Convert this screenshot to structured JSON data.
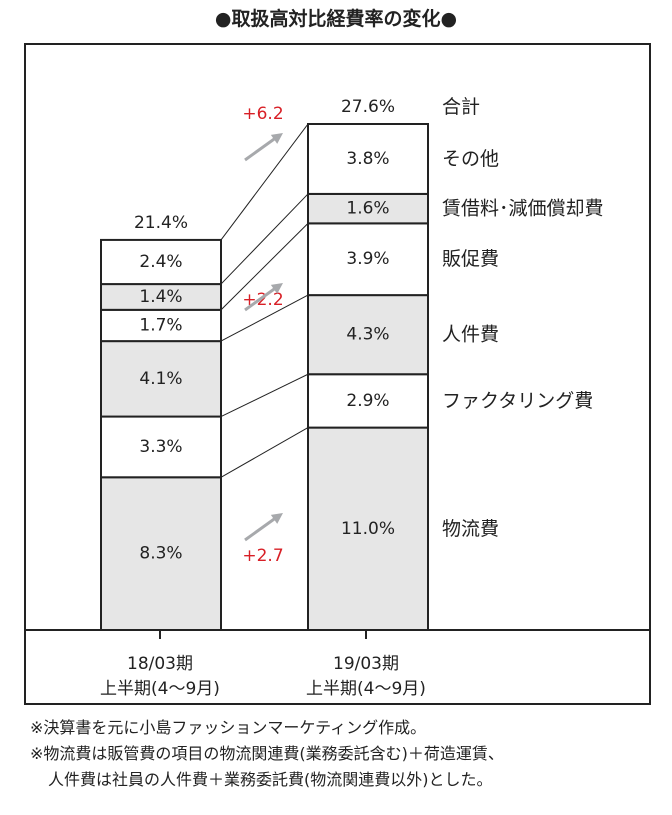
{
  "chart_data": {
    "type": "stacked-bar",
    "title": "●取扱高対比経費率の変化●",
    "unit": "%",
    "categories": [
      {
        "line1": "18/03期",
        "line2": "上半期(4〜9月)"
      },
      {
        "line1": "19/03期",
        "line2": "上半期(4〜9月)"
      }
    ],
    "series": [
      {
        "name": "物流費",
        "values": [
          8.3,
          11.0
        ],
        "labels": [
          "8.3%",
          "11.0%"
        ],
        "shaded": true
      },
      {
        "name": "ファクタリング費",
        "values": [
          3.3,
          2.9
        ],
        "labels": [
          "3.3%",
          "2.9%"
        ],
        "shaded": false
      },
      {
        "name": "人件費",
        "values": [
          4.1,
          4.3
        ],
        "labels": [
          "4.1%",
          "4.3%"
        ],
        "shaded": true
      },
      {
        "name": "販促費",
        "values": [
          1.7,
          3.9
        ],
        "labels": [
          "1.7%",
          "3.9%"
        ],
        "shaded": false
      },
      {
        "name": "賃借料･減価償却費",
        "values": [
          1.4,
          1.6
        ],
        "labels": [
          "1.4%",
          "1.6%"
        ],
        "shaded": true
      },
      {
        "name": "その他",
        "values": [
          2.4,
          3.8
        ],
        "labels": [
          "2.4%",
          "3.8%"
        ],
        "shaded": false
      }
    ],
    "totals": {
      "values": [
        21.4,
        27.6
      ],
      "labels": [
        "21.4%",
        "27.6%"
      ],
      "name": "合計"
    },
    "annotations": [
      {
        "text": "+6.2",
        "value": 6.2
      },
      {
        "text": "+2.2",
        "value": 2.2
      },
      {
        "text": "+2.7",
        "value": 2.7
      }
    ]
  },
  "colors": {
    "shaded": "#e6e6e6",
    "plain": "#ffffff",
    "accent": "#d81f26",
    "arrow": "#a7a9ac",
    "ink": "#222222"
  },
  "footnotes": [
    "※決算書を元に小島ファッションマーケティング作成。",
    "※物流費は販管費の項目の物流関連費(業務委託含む)＋荷造運賃、",
    "人件費は社員の人件費＋業務委託費(物流関連費以外)とした。"
  ]
}
